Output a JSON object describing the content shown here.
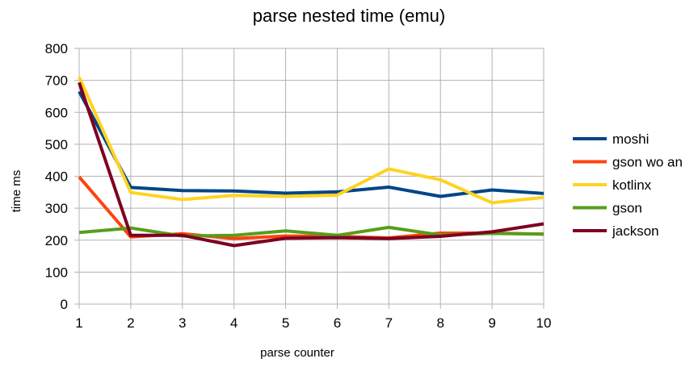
{
  "chart_data": {
    "type": "line",
    "title": "parse nested time (emu)",
    "xlabel": "parse counter",
    "ylabel": "time ms",
    "x": [
      1,
      2,
      3,
      4,
      5,
      6,
      7,
      8,
      9,
      10
    ],
    "ylim": [
      0,
      800
    ],
    "yticks": [
      0,
      100,
      200,
      300,
      400,
      500,
      600,
      700,
      800
    ],
    "grid": true,
    "legend_position": "right",
    "series": [
      {
        "name": "moshi",
        "color": "#004586",
        "values": [
          665,
          365,
          355,
          354,
          347,
          351,
          366,
          337,
          357,
          346
        ]
      },
      {
        "name": "gson wo an",
        "color": "#ff420e",
        "values": [
          398,
          210,
          220,
          205,
          213,
          212,
          207,
          222,
          222,
          219
        ]
      },
      {
        "name": "kotlinx",
        "color": "#ffd320",
        "values": [
          710,
          349,
          327,
          340,
          337,
          341,
          423,
          389,
          317,
          334
        ]
      },
      {
        "name": "gson",
        "color": "#579d1c",
        "values": [
          224,
          238,
          213,
          215,
          229,
          215,
          240,
          216,
          221,
          219
        ]
      },
      {
        "name": "jackson",
        "color": "#7e0021",
        "values": [
          693,
          215,
          215,
          183,
          206,
          208,
          205,
          212,
          226,
          251
        ]
      }
    ]
  }
}
